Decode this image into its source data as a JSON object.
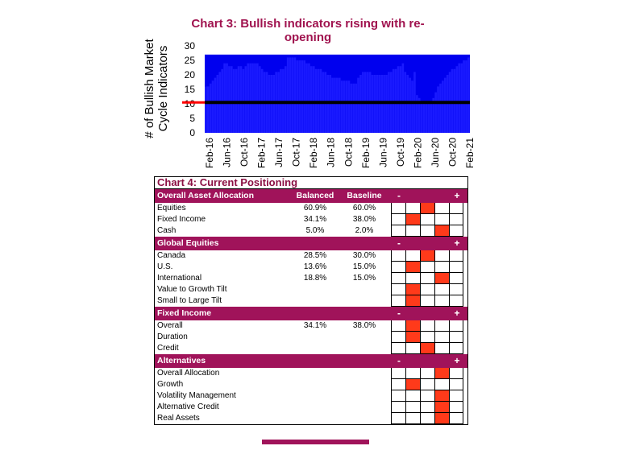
{
  "chart_data": [
    {
      "type": "bar",
      "title": "Chart 3: Bullish indicators rising with re-opening",
      "title_lines": [
        "Chart 3: Bullish indicators rising with re-",
        "opening"
      ],
      "ylabel_lines": [
        "# of Bullish Market",
        "Cycle Indicators"
      ],
      "ylim": [
        0,
        30
      ],
      "yticks": [
        0,
        5,
        10,
        15,
        20,
        25,
        30
      ],
      "xtick_labels": [
        "Feb-16",
        "Jun-16",
        "Oct-16",
        "Feb-17",
        "Jun-17",
        "Oct-17",
        "Feb-18",
        "Jun-18",
        "Oct-18",
        "Feb-19",
        "Jun-19",
        "Oct-19",
        "Feb-20",
        "Jun-20",
        "Oct-20",
        "Feb-21"
      ],
      "threshold": 10.5,
      "colors": {
        "bars": "#1a1aff",
        "background": "#0000ee",
        "threshold_line": "#000000",
        "threshold_marker": "#ff0000"
      },
      "values": [
        16,
        16,
        17,
        18,
        19,
        20,
        21,
        22,
        24,
        24,
        23,
        23,
        22,
        22,
        23,
        23,
        22,
        23,
        24,
        24,
        24,
        24,
        24,
        23,
        22,
        21,
        21,
        20,
        20,
        20,
        21,
        21,
        22,
        22,
        23,
        26,
        26,
        26,
        26,
        25,
        25,
        25,
        25,
        24,
        24,
        23,
        23,
        22,
        22,
        22,
        21,
        21,
        20,
        20,
        19,
        19,
        19,
        19,
        18,
        18,
        18,
        18,
        17,
        17,
        17,
        19,
        20,
        21,
        21,
        21,
        21,
        20,
        20,
        20,
        20,
        20,
        20,
        20,
        21,
        21,
        22,
        22,
        23,
        23,
        24,
        21,
        20,
        19,
        18,
        21,
        13,
        12,
        11,
        11,
        10,
        10,
        10,
        12,
        14,
        16,
        17,
        18,
        19,
        20,
        21,
        22,
        22,
        23,
        24,
        24,
        25,
        25,
        26
      ]
    },
    {
      "type": "table",
      "title": "Chart 4: Current Positioning",
      "scale": {
        "minus": "-",
        "plus": "+"
      },
      "sections": [
        {
          "header": "Overall Asset Allocation",
          "col1": "Balanced",
          "col2": "Baseline",
          "rows": [
            {
              "label": "Equities",
              "balanced": "60.9%",
              "baseline": "60.0%",
              "position": 3
            },
            {
              "label": "Fixed Income",
              "balanced": "34.1%",
              "baseline": "38.0%",
              "position": 2
            },
            {
              "label": "Cash",
              "balanced": "5.0%",
              "baseline": "2.0%",
              "position": 4
            }
          ]
        },
        {
          "header": "Global Equities",
          "col1": "",
          "col2": "",
          "rows": [
            {
              "label": "Canada",
              "balanced": "28.5%",
              "baseline": "30.0%",
              "position": 3
            },
            {
              "label": "U.S.",
              "balanced": "13.6%",
              "baseline": "15.0%",
              "position": 2
            },
            {
              "label": "International",
              "balanced": "18.8%",
              "baseline": "15.0%",
              "position": 4
            },
            {
              "label": "Value to Growth Tilt",
              "balanced": "",
              "baseline": "",
              "position": 2
            },
            {
              "label": "Small to Large Tilt",
              "balanced": "",
              "baseline": "",
              "position": 2
            }
          ]
        },
        {
          "header": "Fixed Income",
          "col1": "",
          "col2": "",
          "rows": [
            {
              "label": "Overall",
              "balanced": "34.1%",
              "baseline": "38.0%",
              "position": 2
            },
            {
              "label": "Duration",
              "balanced": "",
              "baseline": "",
              "position": 2
            },
            {
              "label": "Credit",
              "balanced": "",
              "baseline": "",
              "position": 3
            }
          ]
        },
        {
          "header": "Alternatives",
          "col1": "",
          "col2": "",
          "rows": [
            {
              "label": "Overall Allocation",
              "balanced": "",
              "baseline": "",
              "position": 4
            },
            {
              "label": "Growth",
              "balanced": "",
              "baseline": "",
              "position": 2
            },
            {
              "label": "Volatility Management",
              "balanced": "",
              "baseline": "",
              "position": 4
            },
            {
              "label": "Alternative Credit",
              "balanced": "",
              "baseline": "",
              "position": 4
            },
            {
              "label": "Real Assets",
              "balanced": "",
              "baseline": "",
              "position": 4
            }
          ]
        }
      ]
    }
  ]
}
